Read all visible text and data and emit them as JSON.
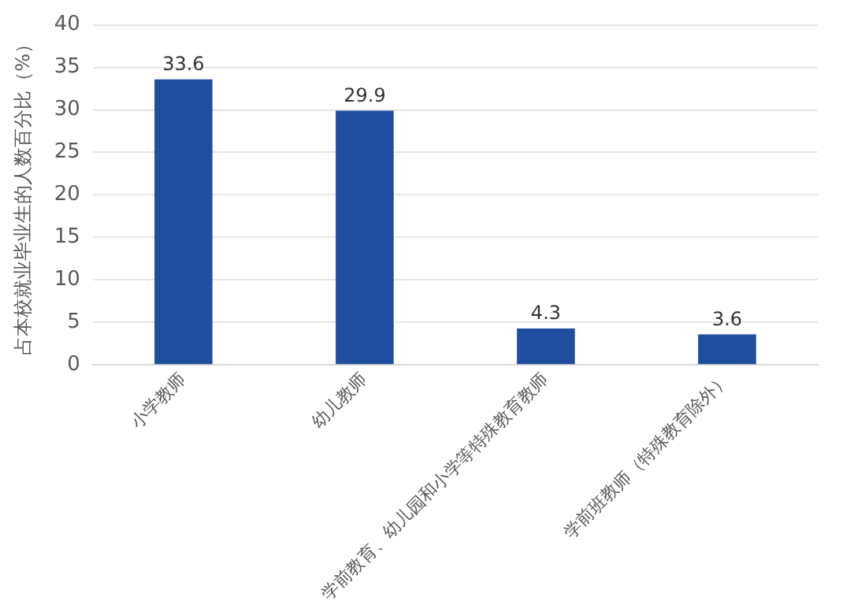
{
  "chart_data": {
    "type": "bar",
    "ylabel": "占本校就业毕业生的人数百分比（%）",
    "categories": [
      "小学教师",
      "幼儿教师",
      "学前教育、幼儿园和小学等特殊教育教师",
      "学前班教师（特殊教育除外）"
    ],
    "values": [
      33.6,
      29.9,
      4.3,
      3.6
    ],
    "color": "#1f4e9f",
    "ylim": [
      0,
      40
    ],
    "yticks": [
      0,
      5,
      10,
      15,
      20,
      25,
      30,
      35,
      40
    ],
    "grid": "y",
    "data_labels": true
  }
}
